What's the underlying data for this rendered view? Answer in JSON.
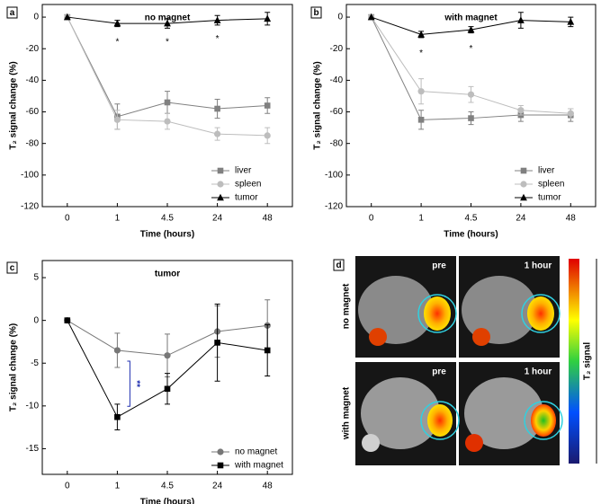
{
  "chart_data": [
    {
      "type": "line",
      "label": "a",
      "title": "no magnet",
      "xlabel": "Time (hours)",
      "ylabel": "T₂ signal change (%)",
      "categories": [
        "0",
        "1",
        "4.5",
        "24",
        "48"
      ],
      "ylim": [
        -120,
        8
      ],
      "yticks": [
        0,
        -20,
        -40,
        -60,
        -80,
        -100,
        -120
      ],
      "legend": "lower right",
      "series": [
        {
          "name": "liver",
          "color": "#808080",
          "marker": "square",
          "values": [
            0,
            -63,
            -54,
            -58,
            -56
          ],
          "errors": [
            0,
            8,
            7,
            6,
            5
          ]
        },
        {
          "name": "spleen",
          "color": "#bdbdbd",
          "marker": "circle",
          "values": [
            0,
            -65,
            -66,
            -74,
            -75
          ],
          "errors": [
            0,
            6,
            5,
            4,
            5
          ]
        },
        {
          "name": "tumor",
          "color": "#000000",
          "marker": "triangle",
          "values": [
            0,
            -4,
            -4,
            -2,
            -1
          ],
          "errors": [
            0,
            2,
            3,
            3,
            4
          ]
        }
      ],
      "annotations": [
        {
          "text": "*",
          "x": "1"
        },
        {
          "text": "*",
          "x": "4.5"
        },
        {
          "text": "*",
          "x": "24"
        }
      ]
    },
    {
      "type": "line",
      "label": "b",
      "title": "with magnet",
      "xlabel": "Time (hours)",
      "ylabel": "T₂ signal change (%)",
      "categories": [
        "0",
        "1",
        "4.5",
        "24",
        "48"
      ],
      "ylim": [
        -120,
        8
      ],
      "yticks": [
        0,
        -20,
        -40,
        -60,
        -80,
        -100,
        -120
      ],
      "legend": "lower right",
      "series": [
        {
          "name": "liver",
          "color": "#808080",
          "marker": "square",
          "values": [
            0,
            -65,
            -64,
            -62,
            -62
          ],
          "errors": [
            0,
            6,
            4,
            4,
            4
          ]
        },
        {
          "name": "spleen",
          "color": "#bdbdbd",
          "marker": "circle",
          "values": [
            0,
            -47,
            -49,
            -59,
            -61
          ],
          "errors": [
            0,
            8,
            5,
            3,
            3
          ]
        },
        {
          "name": "tumor",
          "color": "#000000",
          "marker": "triangle",
          "values": [
            0,
            -11,
            -8,
            -2,
            -3
          ],
          "errors": [
            0,
            2,
            2,
            5,
            3
          ]
        }
      ],
      "annotations": [
        {
          "text": "*",
          "x": "1"
        },
        {
          "text": "*",
          "x": "4.5"
        }
      ]
    },
    {
      "type": "line",
      "label": "c",
      "title": "tumor",
      "xlabel": "Time (hours)",
      "ylabel": "T₂ signal change (%)",
      "categories": [
        "0",
        "1",
        "4.5",
        "24",
        "48"
      ],
      "ylim": [
        -18,
        7
      ],
      "yticks": [
        5,
        0,
        -5,
        -10,
        -15
      ],
      "legend": "lower right",
      "series": [
        {
          "name": "no magnet",
          "color": "#777777",
          "marker": "circle",
          "values": [
            0,
            -3.5,
            -4.1,
            -1.3,
            -0.6
          ],
          "errors": [
            0,
            2,
            2.5,
            3,
            3
          ]
        },
        {
          "name": "with magnet",
          "color": "#000000",
          "marker": "square",
          "values": [
            0,
            -11.3,
            -8,
            -2.6,
            -3.5
          ],
          "errors": [
            0,
            1.5,
            1.8,
            4.5,
            3
          ]
        }
      ],
      "annotations": [
        {
          "text": "**",
          "x": "1",
          "color": "#1f2fb0"
        }
      ]
    }
  ],
  "panel_d": {
    "label": "d",
    "rows": [
      "no magnet",
      "with magnet"
    ],
    "columns": [
      "pre",
      "1 hour"
    ],
    "colorbar_label": "T₂ signal"
  }
}
